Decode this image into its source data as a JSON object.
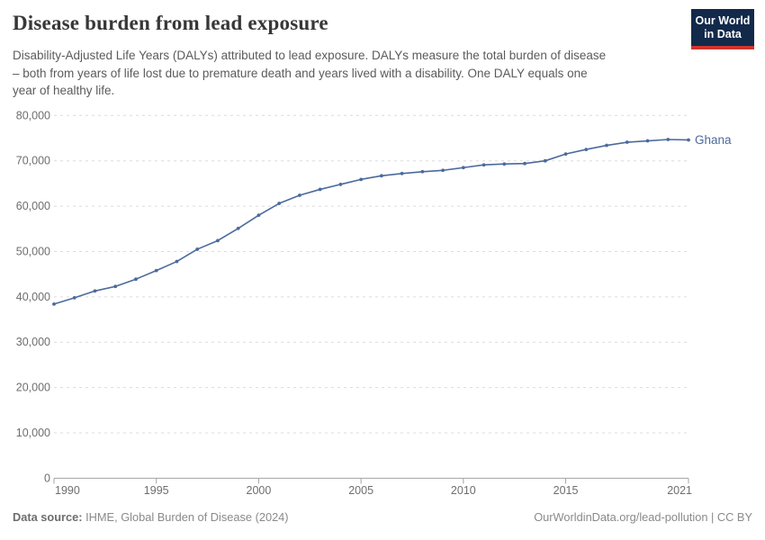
{
  "header": {
    "title": "Disease burden from lead exposure",
    "subtitle_lines": [
      "Disability-Adjusted Life Years (DALYs) attributed to lead exposure. DALYs measure the total burden of disease",
      "– both from years of life lost due to premature death and years lived with a disability. One DALY equals one",
      "year of healthy life."
    ],
    "logo": {
      "line1": "Our World",
      "line2": "in Data",
      "bg_color": "#12294a",
      "stripe_color": "#d0342c"
    }
  },
  "chart_data": {
    "type": "line",
    "title": "Disease burden from lead exposure",
    "xlabel": "",
    "ylabel": "",
    "xlim": [
      1990,
      2021
    ],
    "ylim": [
      0,
      80000
    ],
    "x_ticks": [
      1990,
      1995,
      2000,
      2005,
      2010,
      2015,
      2021
    ],
    "y_ticks": [
      0,
      10000,
      20000,
      30000,
      40000,
      50000,
      60000,
      70000,
      80000
    ],
    "grid": "horizontal-dashed",
    "legend_position": "end-of-line-label",
    "series": [
      {
        "name": "Ghana",
        "color": "#4c6a9c",
        "x": [
          1990,
          1991,
          1992,
          1993,
          1994,
          1995,
          1996,
          1997,
          1998,
          1999,
          2000,
          2001,
          2002,
          2003,
          2004,
          2005,
          2006,
          2007,
          2008,
          2009,
          2010,
          2011,
          2012,
          2013,
          2014,
          2015,
          2016,
          2017,
          2018,
          2019,
          2020,
          2021
        ],
        "values": [
          38400,
          39800,
          41300,
          42300,
          43900,
          45800,
          47800,
          50500,
          52400,
          55100,
          58000,
          60600,
          62400,
          63700,
          64800,
          65900,
          66700,
          67200,
          67600,
          67900,
          68500,
          69100,
          69300,
          69400,
          70000,
          71500,
          72500,
          73400,
          74100,
          74400,
          74700,
          74600
        ]
      }
    ]
  },
  "footer": {
    "source_label": "Data source:",
    "source_text": " IHME, Global Burden of Disease (2024)",
    "credit": "OurWorldinData.org/lead-pollution | CC BY"
  },
  "colors": {
    "line": "#4c6a9c",
    "axis_text": "#6e6e6e",
    "grid": "#dcdcdc",
    "axis_line": "#a3a3a3",
    "title": "#373737",
    "subtitle": "#5b5b5b",
    "footer": "#8a8a8a"
  }
}
